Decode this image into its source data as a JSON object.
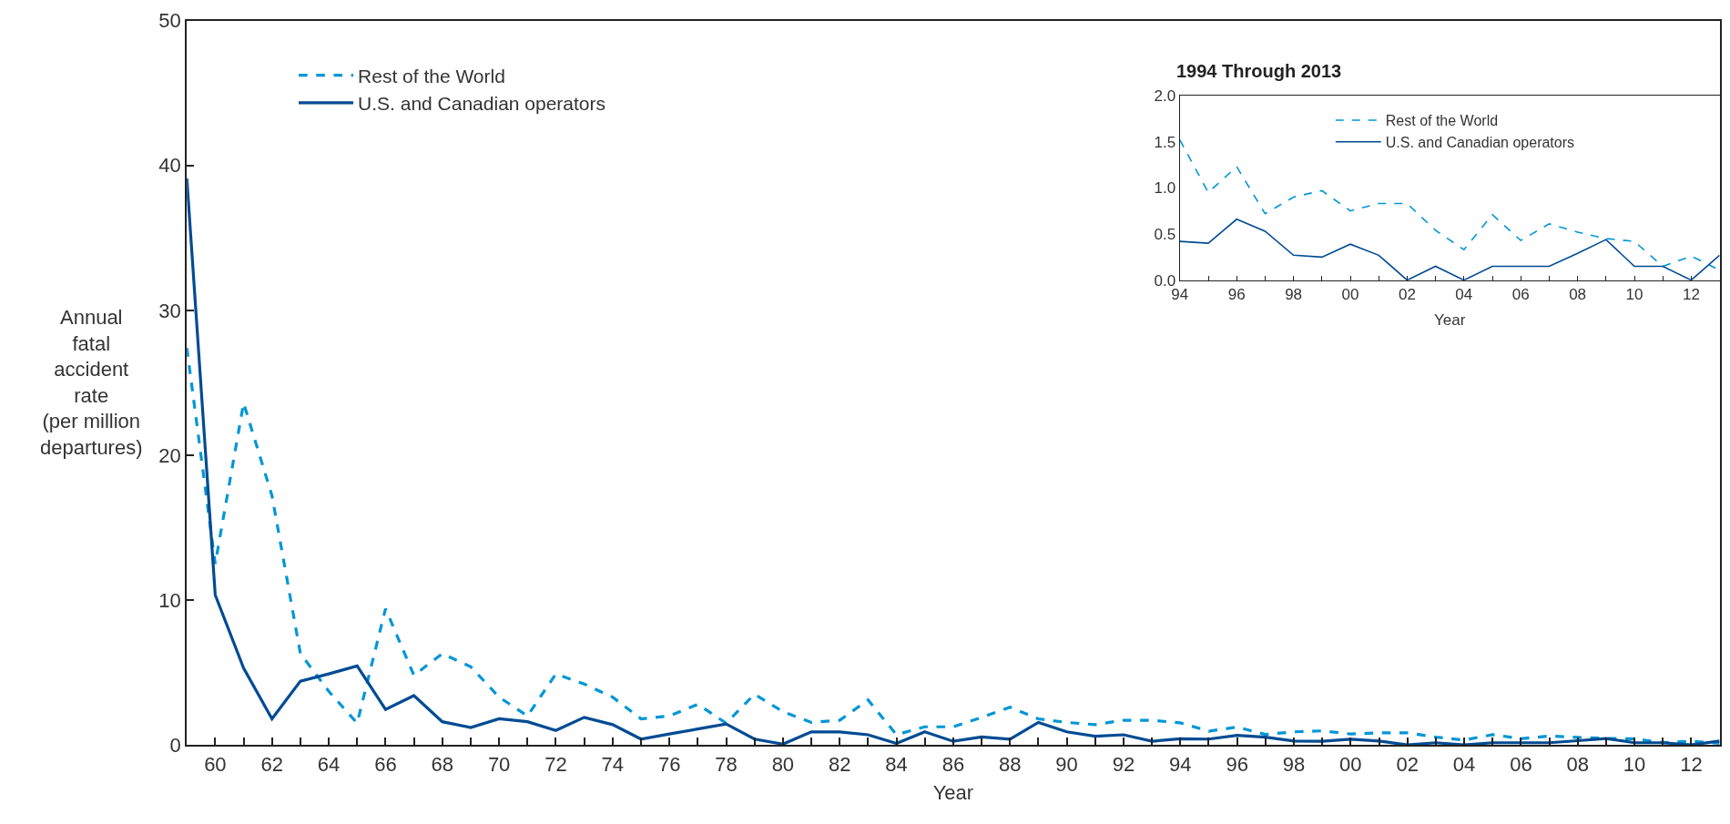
{
  "chart_data": [
    {
      "type": "line",
      "xlabel": "Year",
      "ylabel": "Annual\nfatal\naccident\nrate\n(per million\ndepartures)",
      "x": [
        1959,
        1960,
        1961,
        1962,
        1963,
        1964,
        1965,
        1966,
        1967,
        1968,
        1969,
        1970,
        1971,
        1972,
        1973,
        1974,
        1975,
        1976,
        1977,
        1978,
        1979,
        1980,
        1981,
        1982,
        1983,
        1984,
        1985,
        1986,
        1987,
        1988,
        1989,
        1990,
        1991,
        1992,
        1993,
        1994,
        1995,
        1996,
        1997,
        1998,
        1999,
        2000,
        2001,
        2002,
        2003,
        2004,
        2005,
        2006,
        2007,
        2008,
        2009,
        2010,
        2011,
        2012,
        2013
      ],
      "series": [
        {
          "name": "Rest of the World",
          "color": "#0096d6",
          "line_style": "dashed",
          "values": [
            27.4,
            12.5,
            23.6,
            17.2,
            6.3,
            3.7,
            1.5,
            9.4,
            4.8,
            6.3,
            5.4,
            3.3,
            2.0,
            4.9,
            4.2,
            3.3,
            1.8,
            2.0,
            2.8,
            1.5,
            3.5,
            2.3,
            1.55,
            1.7,
            3.1,
            0.7,
            1.25,
            1.25,
            1.9,
            2.6,
            1.8,
            1.55,
            1.4,
            1.7,
            1.7,
            1.52,
            0.95,
            1.23,
            0.72,
            0.9,
            0.97,
            0.75,
            0.83,
            0.83,
            0.54,
            0.33,
            0.71,
            0.43,
            0.61,
            0.52,
            0.45,
            0.42,
            0.15,
            0.26,
            0.11
          ]
        },
        {
          "name": "U.S. and Canadian operators",
          "color": "#004b93",
          "line_style": "solid",
          "values": [
            39.1,
            10.35,
            5.3,
            1.8,
            4.4,
            4.9,
            5.45,
            2.45,
            3.4,
            1.6,
            1.2,
            1.8,
            1.6,
            1.0,
            1.9,
            1.4,
            0.4,
            0.75,
            1.1,
            1.45,
            0.4,
            0.05,
            0.9,
            0.9,
            0.7,
            0.1,
            0.9,
            0.25,
            0.55,
            0.4,
            1.55,
            0.9,
            0.6,
            0.7,
            0.25,
            0.42,
            0.4,
            0.66,
            0.53,
            0.27,
            0.25,
            0.39,
            0.27,
            0,
            0.15,
            0,
            0.15,
            0.15,
            0.15,
            0.29,
            0.44,
            0.15,
            0.15,
            0,
            0.27
          ]
        }
      ],
      "xlim": [
        1959,
        2013
      ],
      "ylim": [
        0,
        50
      ],
      "xticks": [
        {
          "value": 1960,
          "label": "60"
        },
        {
          "value": 1961,
          "label": null
        },
        {
          "value": 1962,
          "label": "62"
        },
        {
          "value": 1963,
          "label": null
        },
        {
          "value": 1964,
          "label": "64"
        },
        {
          "value": 1965,
          "label": null
        },
        {
          "value": 1966,
          "label": "66"
        },
        {
          "value": 1967,
          "label": null
        },
        {
          "value": 1968,
          "label": "68"
        },
        {
          "value": 1969,
          "label": null
        },
        {
          "value": 1970,
          "label": "70"
        },
        {
          "value": 1971,
          "label": null
        },
        {
          "value": 1972,
          "label": "72"
        },
        {
          "value": 1973,
          "label": null
        },
        {
          "value": 1974,
          "label": "74"
        },
        {
          "value": 1975,
          "label": null
        },
        {
          "value": 1976,
          "label": "76"
        },
        {
          "value": 1977,
          "label": null
        },
        {
          "value": 1978,
          "label": "78"
        },
        {
          "value": 1979,
          "label": null
        },
        {
          "value": 1980,
          "label": "80"
        },
        {
          "value": 1981,
          "label": null
        },
        {
          "value": 1982,
          "label": "82"
        },
        {
          "value": 1983,
          "label": null
        },
        {
          "value": 1984,
          "label": "84"
        },
        {
          "value": 1985,
          "label": null
        },
        {
          "value": 1986,
          "label": "86"
        },
        {
          "value": 1987,
          "label": null
        },
        {
          "value": 1988,
          "label": "88"
        },
        {
          "value": 1989,
          "label": null
        },
        {
          "value": 1990,
          "label": "90"
        },
        {
          "value": 1991,
          "label": null
        },
        {
          "value": 1992,
          "label": "92"
        },
        {
          "value": 1993,
          "label": null
        },
        {
          "value": 1994,
          "label": "94"
        },
        {
          "value": 1995,
          "label": null
        },
        {
          "value": 1996,
          "label": "96"
        },
        {
          "value": 1997,
          "label": null
        },
        {
          "value": 1998,
          "label": "98"
        },
        {
          "value": 1999,
          "label": null
        },
        {
          "value": 2000,
          "label": "00"
        },
        {
          "value": 2001,
          "label": null
        },
        {
          "value": 2002,
          "label": "02"
        },
        {
          "value": 2003,
          "label": null
        },
        {
          "value": 2004,
          "label": "04"
        },
        {
          "value": 2005,
          "label": null
        },
        {
          "value": 2006,
          "label": "06"
        },
        {
          "value": 2007,
          "label": null
        },
        {
          "value": 2008,
          "label": "08"
        },
        {
          "value": 2009,
          "label": null
        },
        {
          "value": 2010,
          "label": "10"
        },
        {
          "value": 2011,
          "label": null
        },
        {
          "value": 2012,
          "label": "12"
        }
      ],
      "yticks": [
        0,
        10,
        20,
        30,
        40,
        50
      ],
      "legend": "top left",
      "marker": "none"
    },
    {
      "type": "line",
      "title": "1994 Through 2013",
      "xlabel": "Year",
      "x": [
        1994,
        1995,
        1996,
        1997,
        1998,
        1999,
        2000,
        2001,
        2002,
        2003,
        2004,
        2005,
        2006,
        2007,
        2008,
        2009,
        2010,
        2011,
        2012,
        2013
      ],
      "series": [
        {
          "name": "Rest of the World",
          "color": "#0096d6",
          "line_style": "dashed",
          "values": [
            1.52,
            0.95,
            1.23,
            0.72,
            0.9,
            0.97,
            0.75,
            0.83,
            0.83,
            0.54,
            0.33,
            0.71,
            0.43,
            0.61,
            0.52,
            0.45,
            0.42,
            0.15,
            0.26,
            0.11
          ]
        },
        {
          "name": "U.S. and Canadian operators",
          "color": "#004b93",
          "line_style": "solid",
          "values": [
            0.42,
            0.4,
            0.66,
            0.53,
            0.27,
            0.25,
            0.39,
            0.27,
            0,
            0.15,
            0,
            0.15,
            0.15,
            0.15,
            0.29,
            0.44,
            0.15,
            0.15,
            0,
            0.27
          ]
        }
      ],
      "xlim": [
        1994,
        2013
      ],
      "ylim": [
        0,
        2
      ],
      "xticks": [
        {
          "value": 1994,
          "label": "94"
        },
        {
          "value": 1995,
          "label": null
        },
        {
          "value": 1996,
          "label": "96"
        },
        {
          "value": 1997,
          "label": null
        },
        {
          "value": 1998,
          "label": "98"
        },
        {
          "value": 1999,
          "label": null
        },
        {
          "value": 2000,
          "label": "00"
        },
        {
          "value": 2001,
          "label": null
        },
        {
          "value": 2002,
          "label": "02"
        },
        {
          "value": 2003,
          "label": null
        },
        {
          "value": 2004,
          "label": "04"
        },
        {
          "value": 2005,
          "label": null
        },
        {
          "value": 2006,
          "label": "06"
        },
        {
          "value": 2007,
          "label": null
        },
        {
          "value": 2008,
          "label": "08"
        },
        {
          "value": 2009,
          "label": null
        },
        {
          "value": 2010,
          "label": "10"
        },
        {
          "value": 2011,
          "label": null
        },
        {
          "value": 2012,
          "label": "12"
        }
      ],
      "yticks": [
        {
          "value": 0,
          "label": "0.0"
        },
        {
          "value": 0.5,
          "label": "0.5"
        },
        {
          "value": 1,
          "label": "1.0"
        },
        {
          "value": 1.5,
          "label": "1.5"
        },
        {
          "value": 2,
          "label": "2.0"
        }
      ],
      "legend": "top",
      "marker": "none"
    }
  ]
}
